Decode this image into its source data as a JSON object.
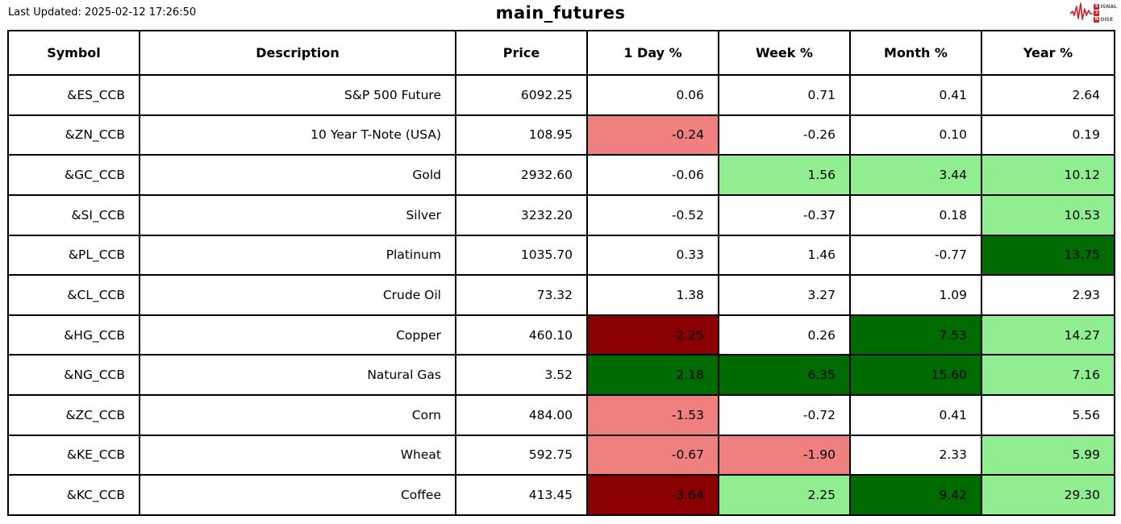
{
  "meta": {
    "last_updated": "Last Updated: 2025-02-12 17:26:50",
    "title": "main_futures"
  },
  "logo": {
    "line1_box": "S",
    "line1_rest": "IGNAL",
    "line2_box": "2",
    "line2_rest": "",
    "line3_box": "N",
    "line3_rest": "OISE",
    "color": "#cc2027"
  },
  "colors": {
    "white": "#ffffff",
    "lightred": "#f08080",
    "lightgreen": "#90ee90",
    "darkgreen": "#006b00",
    "darkred": "#8b0000"
  },
  "chart_data": {
    "type": "table",
    "title": "main_futures",
    "columns": [
      "Symbol",
      "Description",
      "Price",
      "1 Day %",
      "Week %",
      "Month %",
      "Year %"
    ],
    "rows": [
      {
        "symbol": "&ES_CCB",
        "description": "S&P 500 Future",
        "price": "6092.25",
        "changes": [
          {
            "v": "0.06",
            "bg": "white"
          },
          {
            "v": "0.71",
            "bg": "white"
          },
          {
            "v": "0.41",
            "bg": "white"
          },
          {
            "v": "2.64",
            "bg": "white"
          }
        ]
      },
      {
        "symbol": "&ZN_CCB",
        "description": "10 Year T-Note (USA)",
        "price": "108.95",
        "changes": [
          {
            "v": "-0.24",
            "bg": "lightred"
          },
          {
            "v": "-0.26",
            "bg": "white"
          },
          {
            "v": "0.10",
            "bg": "white"
          },
          {
            "v": "0.19",
            "bg": "white"
          }
        ]
      },
      {
        "symbol": "&GC_CCB",
        "description": "Gold",
        "price": "2932.60",
        "changes": [
          {
            "v": "-0.06",
            "bg": "white"
          },
          {
            "v": "1.56",
            "bg": "lightgreen"
          },
          {
            "v": "3.44",
            "bg": "lightgreen"
          },
          {
            "v": "10.12",
            "bg": "lightgreen"
          }
        ]
      },
      {
        "symbol": "&SI_CCB",
        "description": "Silver",
        "price": "3232.20",
        "changes": [
          {
            "v": "-0.52",
            "bg": "white"
          },
          {
            "v": "-0.37",
            "bg": "white"
          },
          {
            "v": "0.18",
            "bg": "white"
          },
          {
            "v": "10.53",
            "bg": "lightgreen"
          }
        ]
      },
      {
        "symbol": "&PL_CCB",
        "description": "Platinum",
        "price": "1035.70",
        "changes": [
          {
            "v": "0.33",
            "bg": "white"
          },
          {
            "v": "1.46",
            "bg": "white"
          },
          {
            "v": "-0.77",
            "bg": "white"
          },
          {
            "v": "13.75",
            "bg": "darkgreen"
          }
        ]
      },
      {
        "symbol": "&CL_CCB",
        "description": "Crude Oil",
        "price": "73.32",
        "changes": [
          {
            "v": "1.38",
            "bg": "white"
          },
          {
            "v": "3.27",
            "bg": "white"
          },
          {
            "v": "1.09",
            "bg": "white"
          },
          {
            "v": "2.93",
            "bg": "white"
          }
        ]
      },
      {
        "symbol": "&HG_CCB",
        "description": "Copper",
        "price": "460.10",
        "changes": [
          {
            "v": "-2.25",
            "bg": "darkred"
          },
          {
            "v": "0.26",
            "bg": "white"
          },
          {
            "v": "7.53",
            "bg": "darkgreen"
          },
          {
            "v": "14.27",
            "bg": "lightgreen"
          }
        ]
      },
      {
        "symbol": "&NG_CCB",
        "description": "Natural Gas",
        "price": "3.52",
        "changes": [
          {
            "v": "2.18",
            "bg": "darkgreen"
          },
          {
            "v": "6.35",
            "bg": "darkgreen"
          },
          {
            "v": "15.60",
            "bg": "darkgreen"
          },
          {
            "v": "7.16",
            "bg": "lightgreen"
          }
        ]
      },
      {
        "symbol": "&ZC_CCB",
        "description": "Corn",
        "price": "484.00",
        "changes": [
          {
            "v": "-1.53",
            "bg": "lightred"
          },
          {
            "v": "-0.72",
            "bg": "white"
          },
          {
            "v": "0.41",
            "bg": "white"
          },
          {
            "v": "5.56",
            "bg": "white"
          }
        ]
      },
      {
        "symbol": "&KE_CCB",
        "description": "Wheat",
        "price": "592.75",
        "changes": [
          {
            "v": "-0.67",
            "bg": "lightred"
          },
          {
            "v": "-1.90",
            "bg": "lightred"
          },
          {
            "v": "2.33",
            "bg": "white"
          },
          {
            "v": "5.99",
            "bg": "lightgreen"
          }
        ]
      },
      {
        "symbol": "&KC_CCB",
        "description": "Coffee",
        "price": "413.45",
        "changes": [
          {
            "v": "-3.64",
            "bg": "darkred"
          },
          {
            "v": "2.25",
            "bg": "lightgreen"
          },
          {
            "v": "9.42",
            "bg": "darkgreen"
          },
          {
            "v": "29.30",
            "bg": "lightgreen"
          }
        ]
      }
    ]
  }
}
